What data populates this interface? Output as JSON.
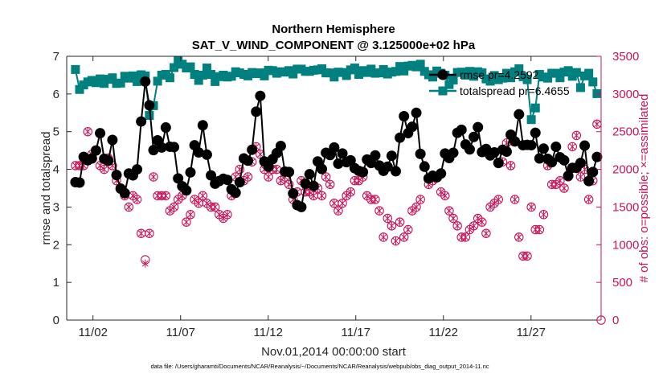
{
  "chart_data": {
    "type": "line",
    "title": "Northern Hemisphere",
    "subtitle": "SAT_V_WIND_COMPONENT @ 3.125000e+02 hPa",
    "xlabel": "Nov.01,2014 00:00:00 start",
    "ylabel": "rmse and totalspread",
    "y2label": "# of obs: o=possible; ×=assimilated",
    "footnote": "data file: /Users/gharamti/Documents/NCAR/Reanalysis/~/Documents/NCAR/Reanalysis/webpub/obs_diag_output_2014-11.nc",
    "xlim": [
      0.5,
      31
    ],
    "ylim": [
      0,
      7
    ],
    "y2lim": [
      0,
      3500
    ],
    "x_ticks": [
      {
        "value": 2,
        "label": "11/02"
      },
      {
        "value": 7,
        "label": "11/07"
      },
      {
        "value": 12,
        "label": "11/12"
      },
      {
        "value": 17,
        "label": "11/17"
      },
      {
        "value": 22,
        "label": "11/22"
      },
      {
        "value": 27,
        "label": "11/27"
      }
    ],
    "y_ticks": [
      0,
      1,
      2,
      3,
      4,
      5,
      6,
      7
    ],
    "y2_ticks": [
      0,
      500,
      1000,
      1500,
      2000,
      2500,
      3000,
      3500
    ],
    "legend": [
      "rmse pr=4.2592",
      "totalspread pr=6.4655"
    ],
    "legend_position": "top-right",
    "colors": {
      "rmse": "#000000",
      "spread": "#00807f",
      "obs": "#c8145a",
      "axis": "#262626"
    },
    "series": [
      {
        "name": "rmse",
        "axis": "left",
        "values": [
          3.66,
          3.65,
          4.33,
          4.24,
          4.29,
          4.5,
          4.96,
          4.28,
          4.23,
          4.78,
          3.85,
          3.49,
          3.37,
          3.89,
          3.84,
          4.0,
          5.27,
          6.33,
          5.7,
          4.51,
          4.77,
          4.58,
          5.11,
          4.6,
          4.59,
          3.76,
          3.55,
          3.44,
          3.92,
          4.64,
          4.45,
          5.17,
          4.39,
          3.84,
          3.62,
          3.69,
          3.75,
          3.72,
          3.47,
          3.38,
          3.66,
          4.29,
          4.23,
          4.52,
          5.53,
          5.95,
          4.21,
          4.07,
          4.27,
          4.43,
          4.62,
          3.94,
          3.93,
          3.36,
          3.05,
          3.0,
          3.62,
          3.87,
          3.56,
          4.21,
          4.01,
          4.44,
          4.38,
          4.58,
          4.15,
          4.42,
          4.19,
          4.24,
          4.03,
          3.96,
          3.93,
          4.26,
          4.17,
          4.37,
          4.1,
          3.96,
          4.07,
          4.36,
          3.95,
          4.84,
          5.41,
          4.96,
          5.13,
          5.5,
          4.41,
          4.07,
          3.76,
          3.83,
          3.79,
          3.89,
          4.42,
          4.3,
          4.44,
          4.97,
          5.05,
          4.66,
          4.53,
          4.86,
          5.12,
          4.46,
          4.54,
          4.37,
          4.45,
          4.17,
          4.52,
          4.47,
          4.92,
          4.74,
          5.46,
          4.64,
          4.65,
          4.64,
          4.97,
          4.29,
          4.55,
          4.28,
          4.19,
          4.6,
          4.32,
          4.24,
          3.83,
          4.04,
          4.04,
          4.17,
          4.63,
          3.69,
          3.93,
          4.33
        ]
      },
      {
        "name": "totalspread",
        "axis": "left",
        "values": [
          6.65,
          6.12,
          6.24,
          6.32,
          6.36,
          6.3,
          6.4,
          6.28,
          6.39,
          6.43,
          6.28,
          6.29,
          6.47,
          6.42,
          6.48,
          6.33,
          6.51,
          6.48,
          5.43,
          5.69,
          6.34,
          6.5,
          6.52,
          6.43,
          6.7,
          6.88,
          6.79,
          6.69,
          6.72,
          6.52,
          6.36,
          6.5,
          6.69,
          6.52,
          6.33,
          6.46,
          6.5,
          6.45,
          6.47,
          6.59,
          6.56,
          6.52,
          6.48,
          6.57,
          6.54,
          6.56,
          6.48,
          6.63,
          6.62,
          6.55,
          6.59,
          6.58,
          6.62,
          6.53,
          6.66,
          6.66,
          6.6,
          6.6,
          6.63,
          6.64,
          6.67,
          6.56,
          6.56,
          6.45,
          6.58,
          6.57,
          6.49,
          6.64,
          6.69,
          6.52,
          6.62,
          6.57,
          6.66,
          6.55,
          6.56,
          6.65,
          6.53,
          6.58,
          6.6,
          6.73,
          6.61,
          6.74,
          6.76,
          6.72,
          6.79,
          6.6,
          6.51,
          6.45,
          6.61,
          6.55,
          6.5,
          6.25,
          6.37,
          6.57,
          6.58,
          6.5,
          6.6,
          6.47,
          6.59,
          6.56,
          6.4,
          6.34,
          6.49,
          6.38,
          6.42,
          6.55,
          6.43,
          6.59,
          6.67,
          6.46,
          6.38,
          5.32,
          5.63,
          6.52,
          6.45,
          6.42,
          6.55,
          6.55,
          6.43,
          6.58,
          6.62,
          6.47,
          6.57,
          6.17,
          6.48,
          6.55,
          6.32,
          6.01
        ]
      },
      {
        "name": "possible",
        "axis": "right",
        "values": [
          2050,
          2050,
          2050,
          2500,
          2200,
          2250,
          2050,
          2000,
          2150,
          2050,
          1850,
          1750,
          1650,
          1500,
          1650,
          1600,
          1150,
          800,
          1150,
          1900,
          1650,
          1650,
          1650,
          1450,
          1500,
          1600,
          1650,
          1300,
          1400,
          1600,
          1550,
          1650,
          1550,
          1500,
          1500,
          1400,
          1350,
          1400,
          1650,
          1900,
          2000,
          1850,
          1900,
          2100,
          2300,
          2200,
          2000,
          1900,
          2000,
          2000,
          1850,
          1900,
          1800,
          1600,
          1700,
          1850,
          1700,
          1700,
          1650,
          1750,
          1650,
          1900,
          1800,
          1550,
          1450,
          1550,
          1650,
          1700,
          1850,
          1850,
          1900,
          1650,
          1600,
          1600,
          1450,
          1100,
          1350,
          1250,
          1050,
          1300,
          1100,
          1200,
          1450,
          1500,
          1600,
          2050,
          1800,
          1850,
          1900,
          1700,
          1650,
          1450,
          1350,
          1250,
          1100,
          1100,
          1200,
          1250,
          1350,
          1300,
          1150,
          1500,
          1550,
          1600,
          2100,
          2350,
          2050,
          1600,
          1100,
          850,
          850,
          1500,
          1200,
          1200,
          1400,
          2050,
          1800,
          1800,
          1850,
          1750,
          1900,
          2300,
          2450,
          1900,
          2000,
          1600,
          1850,
          2600
        ]
      },
      {
        "name": "assimilated",
        "axis": "right",
        "values": [
          2050,
          2050,
          2050,
          2500,
          2200,
          2250,
          2050,
          2000,
          2150,
          2050,
          1850,
          1750,
          1650,
          1500,
          1650,
          1600,
          1150,
          750,
          1150,
          1900,
          1650,
          1650,
          1650,
          1450,
          1500,
          1600,
          1650,
          1300,
          1400,
          1600,
          1550,
          1650,
          1550,
          1500,
          1500,
          1400,
          1350,
          1400,
          1650,
          1900,
          2000,
          1850,
          1900,
          2100,
          2300,
          2200,
          2000,
          1900,
          2000,
          2000,
          1850,
          1900,
          1800,
          1600,
          1700,
          1850,
          1700,
          1700,
          1650,
          1750,
          1650,
          1900,
          1800,
          1550,
          1450,
          1550,
          1650,
          1700,
          1850,
          1850,
          1900,
          1650,
          1600,
          1600,
          1450,
          1100,
          1350,
          1250,
          1050,
          1300,
          1100,
          1200,
          1450,
          1500,
          1600,
          2050,
          1800,
          1850,
          1900,
          1700,
          1650,
          1450,
          1350,
          1250,
          1100,
          1100,
          1200,
          1250,
          1350,
          1300,
          1150,
          1500,
          1550,
          1600,
          2100,
          2350,
          2050,
          1600,
          1100,
          850,
          850,
          1500,
          1200,
          1200,
          1400,
          2050,
          1800,
          1800,
          1850,
          1750,
          1900,
          2300,
          2450,
          1900,
          2000,
          1600,
          1850,
          2600
        ]
      }
    ],
    "final_obs_point": {
      "x": 31,
      "y2": 0
    }
  }
}
